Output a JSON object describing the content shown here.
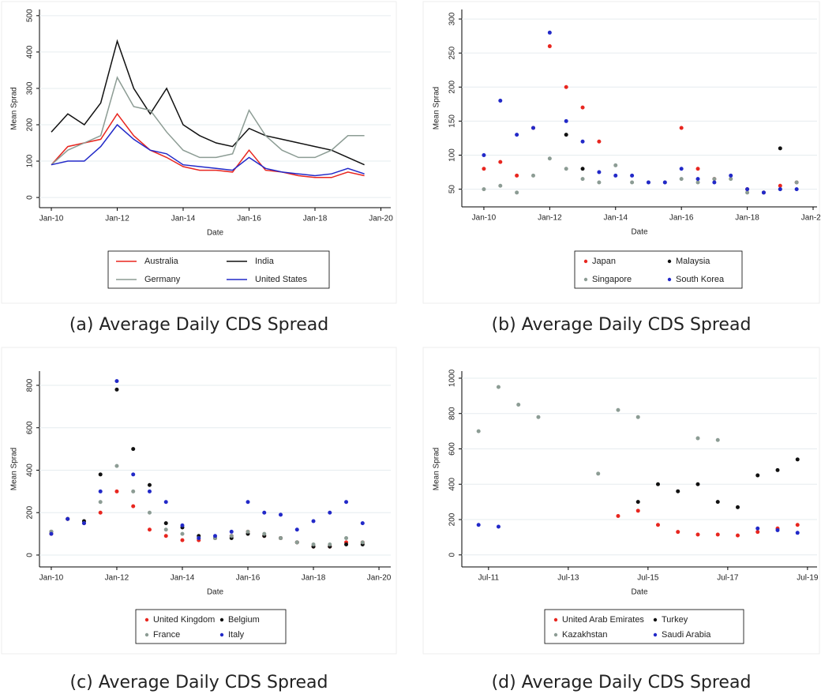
{
  "chart_data": [
    {
      "type": "line",
      "caption": "(a) Average Daily CDS Spread",
      "x_label": "Date",
      "y_label": "Mean Sprad",
      "x": [
        2010,
        2010.5,
        2011,
        2011.5,
        2012,
        2012.5,
        2013,
        2013.5,
        2014,
        2014.5,
        2015,
        2015.5,
        2016,
        2016.5,
        2017,
        2017.5,
        2018,
        2018.5,
        2019,
        2019.5
      ],
      "series": [
        {
          "name": "Australia",
          "color": "#e8261f",
          "values": [
            90,
            140,
            150,
            160,
            230,
            170,
            130,
            110,
            85,
            75,
            75,
            70,
            130,
            75,
            70,
            60,
            55,
            55,
            70,
            60
          ]
        },
        {
          "name": "India",
          "color": "#111111",
          "values": [
            180,
            230,
            200,
            260,
            430,
            300,
            230,
            300,
            200,
            170,
            150,
            140,
            190,
            170,
            160,
            150,
            140,
            130,
            110,
            90
          ]
        },
        {
          "name": "Germany",
          "color": "#8c9c94",
          "values": [
            90,
            130,
            150,
            170,
            330,
            250,
            240,
            180,
            130,
            110,
            110,
            120,
            240,
            170,
            130,
            110,
            110,
            130,
            170,
            170
          ]
        },
        {
          "name": "United States",
          "color": "#2229c8",
          "values": [
            90,
            100,
            100,
            140,
            200,
            160,
            130,
            120,
            90,
            85,
            80,
            75,
            110,
            80,
            70,
            65,
            60,
            65,
            80,
            65
          ]
        }
      ],
      "xlim": [
        2009.64,
        2020.3
      ],
      "xticks": [
        {
          "value": 2010,
          "label": "Jan-10"
        },
        {
          "value": 2012,
          "label": "Jan-12"
        },
        {
          "value": 2014,
          "label": "Jan-14"
        },
        {
          "value": 2016,
          "label": "Jan-16"
        },
        {
          "value": 2018,
          "label": "Jan-18"
        },
        {
          "value": 2020,
          "label": "Jan-20"
        }
      ],
      "ylim": [
        -28,
        517
      ],
      "yticks": [
        0,
        100,
        200,
        300,
        400,
        500
      ],
      "grid": true,
      "legend": "bottom"
    },
    {
      "type": "scatter",
      "caption": "(b) Average Daily CDS Spread",
      "x_label": "Date",
      "y_label": "Mean Sprad",
      "x": [
        2010,
        2010.5,
        2011,
        2011.5,
        2012,
        2012.5,
        2013,
        2013.5,
        2014,
        2014.5,
        2015,
        2015.5,
        2016,
        2016.5,
        2017,
        2017.5,
        2018,
        2018.5,
        2019,
        2019.5
      ],
      "series": [
        {
          "name": "Japan",
          "color": "#e8261f",
          "values": [
            80,
            90,
            70,
            140,
            260,
            200,
            170,
            120,
            null,
            null,
            null,
            null,
            140,
            80,
            65,
            null,
            50,
            45,
            55,
            60
          ]
        },
        {
          "name": "Malaysia",
          "color": "#111111",
          "values": [
            null,
            null,
            null,
            null,
            null,
            130,
            80,
            null,
            null,
            null,
            null,
            null,
            null,
            null,
            null,
            null,
            null,
            null,
            110,
            null
          ]
        },
        {
          "name": "Singapore",
          "color": "#8c9c94",
          "values": [
            50,
            55,
            45,
            70,
            95,
            80,
            65,
            60,
            85,
            60,
            60,
            60,
            65,
            60,
            65,
            65,
            45,
            45,
            50,
            60
          ]
        },
        {
          "name": "South Korea",
          "color": "#2229c8",
          "values": [
            100,
            180,
            130,
            140,
            280,
            150,
            120,
            75,
            70,
            70,
            60,
            60,
            80,
            65,
            60,
            70,
            50,
            45,
            50,
            50
          ]
        }
      ],
      "xlim": [
        2009.33,
        2020.12
      ],
      "xticks": [
        {
          "value": 2010,
          "label": "Jan-10"
        },
        {
          "value": 2012,
          "label": "Jan-12"
        },
        {
          "value": 2014,
          "label": "Jan-14"
        },
        {
          "value": 2016,
          "label": "Jan-16"
        },
        {
          "value": 2018,
          "label": "Jan-18"
        },
        {
          "value": 2020,
          "label": "Jan-20"
        }
      ],
      "ylim": [
        24,
        314
      ],
      "yticks": [
        50,
        100,
        150,
        200,
        250,
        300
      ],
      "grid": true,
      "legend": "bottom"
    },
    {
      "type": "scatter",
      "caption": "(c) Average Daily CDS Spread",
      "x_label": "Date",
      "y_label": "Mean Sprad",
      "x": [
        2010,
        2010.5,
        2011,
        2011.5,
        2012,
        2012.5,
        2013,
        2013.5,
        2014,
        2014.5,
        2015,
        2015.5,
        2016,
        2016.5,
        2017,
        2017.5,
        2018,
        2018.5,
        2019,
        2019.5
      ],
      "series": [
        {
          "name": "United Kingdom",
          "color": "#e8261f",
          "values": [
            100,
            170,
            150,
            200,
            300,
            230,
            120,
            90,
            70,
            70,
            80,
            90,
            110,
            90,
            80,
            60,
            40,
            40,
            60,
            60
          ]
        },
        {
          "name": "Belgium",
          "color": "#111111",
          "values": [
            110,
            170,
            160,
            380,
            780,
            500,
            330,
            150,
            130,
            90,
            80,
            80,
            100,
            90,
            80,
            60,
            40,
            40,
            50,
            50
          ]
        },
        {
          "name": "France",
          "color": "#8c9c94",
          "values": [
            110,
            170,
            150,
            250,
            420,
            300,
            200,
            120,
            100,
            80,
            80,
            90,
            110,
            100,
            80,
            60,
            50,
            50,
            80,
            60
          ]
        },
        {
          "name": "Italy",
          "color": "#2229c8",
          "values": [
            100,
            170,
            150,
            300,
            820,
            380,
            300,
            250,
            140,
            80,
            90,
            110,
            250,
            200,
            190,
            120,
            160,
            200,
            250,
            150
          ]
        }
      ],
      "xlim": [
        2009.64,
        2020.36
      ],
      "xticks": [
        {
          "value": 2010,
          "label": "Jan-10"
        },
        {
          "value": 2012,
          "label": "Jan-12"
        },
        {
          "value": 2014,
          "label": "Jan-14"
        },
        {
          "value": 2016,
          "label": "Jan-16"
        },
        {
          "value": 2018,
          "label": "Jan-18"
        },
        {
          "value": 2020,
          "label": "Jan-20"
        }
      ],
      "ylim": [
        -56,
        867
      ],
      "yticks": [
        0,
        200,
        400,
        600,
        800
      ],
      "grid": true,
      "legend": "bottom"
    },
    {
      "type": "scatter",
      "caption": "(d) Average Daily CDS Spread",
      "x_label": "Date",
      "y_label": "Mean Sprad",
      "x": [
        2011.25,
        2011.75,
        2012.25,
        2012.75,
        2013.25,
        2013.75,
        2014.25,
        2014.75,
        2015.25,
        2015.75,
        2016.25,
        2016.75,
        2017.25,
        2017.75,
        2018.25,
        2018.75,
        2019.25
      ],
      "series": [
        {
          "name": "United Arab Emirates",
          "color": "#e8261f",
          "values": [
            null,
            null,
            null,
            null,
            null,
            null,
            null,
            220,
            250,
            170,
            130,
            115,
            115,
            110,
            130,
            150,
            170
          ]
        },
        {
          "name": "Turkey",
          "color": "#111111",
          "values": [
            null,
            null,
            null,
            null,
            null,
            null,
            null,
            null,
            300,
            400,
            360,
            400,
            300,
            270,
            450,
            480,
            540
          ]
        },
        {
          "name": "Kazakhstan",
          "color": "#8c9c94",
          "values": [
            700,
            950,
            850,
            780,
            null,
            null,
            460,
            820,
            780,
            null,
            null,
            660,
            650,
            null,
            null,
            null,
            null
          ]
        },
        {
          "name": "Saudi Arabia",
          "color": "#2229c8",
          "values": [
            170,
            160,
            null,
            null,
            null,
            null,
            null,
            null,
            null,
            null,
            null,
            null,
            null,
            null,
            150,
            140,
            125
          ]
        }
      ],
      "xlim": [
        2010.83,
        2019.74
      ],
      "xticks": [
        {
          "value": 2011.5,
          "label": "Jul-11"
        },
        {
          "value": 2013.5,
          "label": "Jul-13"
        },
        {
          "value": 2015.5,
          "label": "Jul-15"
        },
        {
          "value": 2017.5,
          "label": "Jul-17"
        },
        {
          "value": 2019.5,
          "label": "Jul-19"
        }
      ],
      "ylim": [
        -68,
        1040
      ],
      "yticks": [
        0,
        200,
        400,
        600,
        800,
        1000
      ],
      "grid": true,
      "legend": "bottom"
    }
  ]
}
